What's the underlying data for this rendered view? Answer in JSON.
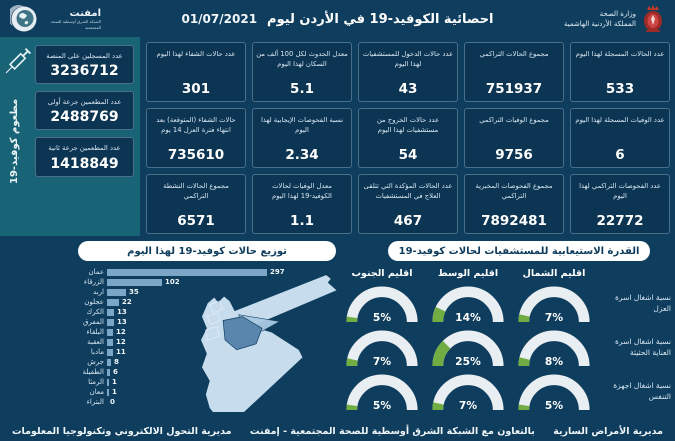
{
  "header": {
    "title": "احصائية الكوفيد-19 في الأردن ليوم",
    "date": "01/07/2021",
    "ministry": {
      "name": "وزارة الصحة",
      "country": "المملكة الأردنية الهاشمية"
    },
    "emphnet": {
      "name": "امفنت",
      "subtitle": "الشبكة الشرق أوسطية للصحة المجتمعية"
    }
  },
  "vaccination_panel": {
    "rotated_label": "مطعوم كوفيد-19",
    "cards": [
      {
        "label": "عدد المسجلين على المنصة",
        "value": "3236712"
      },
      {
        "label": "عدد المطعمين جرعة أولى",
        "value": "2488769"
      },
      {
        "label": "عدد المطعمين جرعة ثانية",
        "value": "1418849"
      }
    ]
  },
  "stats": {
    "cards": [
      {
        "label": "عدد الحالات المسجلة لهذا اليوم",
        "value": "533"
      },
      {
        "label": "مجموع الحالات التراكمي",
        "value": "751937"
      },
      {
        "label": "عدد حالات الدخول للمستشفيات لهذا اليوم",
        "value": "43"
      },
      {
        "label": "معدل الحدوث لكل 100 ألف من السكان لهذا اليوم",
        "value": "5.1"
      },
      {
        "label": "عدد حالات الشفاء لهذا اليوم",
        "value": "301"
      },
      {
        "label": "عدد الوفيات المسجلة لهذا اليوم",
        "value": "6"
      },
      {
        "label": "مجموع الوفيات التراكمي",
        "value": "9756"
      },
      {
        "label": "عدد حالات الخروج من مستشفيات لهذا اليوم",
        "value": "54"
      },
      {
        "label": "نسبة الفحوصات الإيجابية لهذا اليوم",
        "value": "2.34"
      },
      {
        "label": "حالات الشفاء (المتوقعة) بعد انتهاء فترة العزل 14 يوم",
        "value": "735610"
      },
      {
        "label": "عدد الفحوصات التراكمي لهذا اليوم",
        "value": "22772"
      },
      {
        "label": "مجموع الفحوصات المخبرية التراكمي",
        "value": "7892481"
      },
      {
        "label": "عدد الحالات المؤكدة التي تتلقى العلاج في المستشفيات",
        "value": "467"
      },
      {
        "label": "معدل الوفيات لحالات الكوفيد-19 لهذا اليوم",
        "value": "1.1"
      },
      {
        "label": "مجموع الحالات النشطة التراكمي",
        "value": "6571"
      }
    ]
  },
  "chart_data": [
    {
      "type": "bar",
      "orientation": "horizontal",
      "title": "توزيع حالات كوفيد-19 لهذا اليوم",
      "categories": [
        "عمان",
        "الزرقاء",
        "اربد",
        "عجلون",
        "الكرك",
        "المفرق",
        "البلقاء",
        "العقبة",
        "مادبا",
        "جرش",
        "الطفيلة",
        "الرمثا",
        "معان",
        "البتراء"
      ],
      "values": [
        297,
        102,
        35,
        22,
        13,
        13,
        12,
        12,
        11,
        8,
        6,
        1,
        1,
        0
      ],
      "xlim": [
        0,
        300
      ],
      "bar_color": "#7ba6c6"
    },
    {
      "type": "gauge",
      "title": "القدرة الاستيعابية للمستشفيات لحالات كوفيد-19",
      "unit": "%",
      "columns": [
        "اقليم الشمال",
        "اقليم الوسط",
        "اقليم الجنوب"
      ],
      "rows": [
        {
          "label": "نسبة اشغال اسرة العزل",
          "values": [
            7,
            14,
            5
          ]
        },
        {
          "label": "نسبة اشغال اسرة العناية الحثيثة",
          "values": [
            8,
            25,
            7
          ]
        },
        {
          "label": "نسبة اشغال اجهزة التنفس",
          "values": [
            5,
            7,
            5
          ]
        }
      ]
    }
  ],
  "footer": {
    "right": "مديرية الأمراض السارية",
    "center": "بالتعاون مع الشبكة الشرق أوسطية للصحة المجتمعية - إمفنت",
    "left": "مديرية التحول الالكتروني وتكنولوجيا المعلومات"
  },
  "colors": {
    "background": "#0e3d5e",
    "card": "#0c3553",
    "panel_teal": "#186476",
    "bar": "#7ba6c6",
    "gauge_green": "#72ad44",
    "gauge_track": "#e9eef2",
    "map_light": "#c7ddee",
    "map_amman": "#5a85ad",
    "map_zarqa": "#a9c9e3"
  }
}
